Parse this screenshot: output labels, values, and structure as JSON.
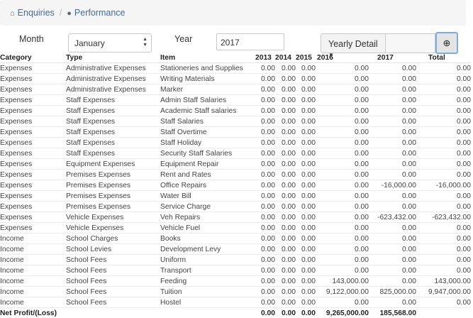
{
  "breadcrumb": {
    "home_label": "Enquiries",
    "current_label": "Performance"
  },
  "filters": {
    "month_label": "Month",
    "month_value": "January",
    "year_label": "Year",
    "year_value": "2017",
    "detail_button": "Yearly Detail",
    "search_placeholder": ""
  },
  "table": {
    "headers": [
      "Category",
      "Type",
      "Item",
      "2013",
      "2014",
      "2015",
      "2016",
      "2017",
      "Total"
    ],
    "rows": [
      [
        "Expenses",
        "Administrative Expenses",
        "Stationeries and Supplies",
        "0.00",
        "0.00",
        "0.00",
        "0.00",
        "0.00",
        "0.00"
      ],
      [
        "Expenses",
        "Administrative Expenses",
        "Writing Materials",
        "0.00",
        "0.00",
        "0.00",
        "0.00",
        "0.00",
        "0.00"
      ],
      [
        "Expenses",
        "Administrative Expenses",
        "Marker",
        "0.00",
        "0.00",
        "0.00",
        "0.00",
        "0.00",
        "0.00"
      ],
      [
        "Expenses",
        "Staff Expenses",
        "Admin Staff Salaries",
        "0.00",
        "0.00",
        "0.00",
        "0.00",
        "0.00",
        "0.00"
      ],
      [
        "Expenses",
        "Staff Expenses",
        "Academic Staff salaries",
        "0.00",
        "0.00",
        "0.00",
        "0.00",
        "0.00",
        "0.00"
      ],
      [
        "Expenses",
        "Staff Expenses",
        "Staff Salaries",
        "0.00",
        "0.00",
        "0.00",
        "0.00",
        "0.00",
        "0.00"
      ],
      [
        "Expenses",
        "Staff Expenses",
        "Staff Overtime",
        "0.00",
        "0.00",
        "0.00",
        "0.00",
        "0.00",
        "0.00"
      ],
      [
        "Expenses",
        "Staff Expenses",
        "Staff Holiday",
        "0.00",
        "0.00",
        "0.00",
        "0.00",
        "0.00",
        "0.00"
      ],
      [
        "Expenses",
        "Staff Expenses",
        "Security Staff Salaries",
        "0.00",
        "0.00",
        "0.00",
        "0.00",
        "0.00",
        "0.00"
      ],
      [
        "Expenses",
        "Equipment Expenses",
        "Equipment Repair",
        "0.00",
        "0.00",
        "0.00",
        "0.00",
        "0.00",
        "0.00"
      ],
      [
        "Expenses",
        "Premises Expenses",
        "Rent and Rates",
        "0.00",
        "0.00",
        "0.00",
        "0.00",
        "0.00",
        "0.00"
      ],
      [
        "Expenses",
        "Premises Expenses",
        "Office Repairs",
        "0.00",
        "0.00",
        "0.00",
        "0.00",
        "-16,000.00",
        "-16,000.00"
      ],
      [
        "Expenses",
        "Premises Expenses",
        "Water Bill",
        "0.00",
        "0.00",
        "0.00",
        "0.00",
        "0.00",
        "0.00"
      ],
      [
        "Expenses",
        "Premises Expenses",
        "Service Charge",
        "0.00",
        "0.00",
        "0.00",
        "0.00",
        "0.00",
        "0.00"
      ],
      [
        "Expenses",
        "Vehicle Expenses",
        "Veh Repairs",
        "0.00",
        "0.00",
        "0.00",
        "0.00",
        "-623,432.00",
        "-623,432.00"
      ],
      [
        "Expenses",
        "Vehicle Expenses",
        "Vehicle Fuel",
        "0.00",
        "0.00",
        "0.00",
        "0.00",
        "0.00",
        "0.00"
      ],
      [
        "Income",
        "School Charges",
        "Books",
        "0.00",
        "0.00",
        "0.00",
        "0.00",
        "0.00",
        "0.00"
      ],
      [
        "Income",
        "School Levies",
        "Development Levy",
        "0.00",
        "0.00",
        "0.00",
        "0.00",
        "0.00",
        "0.00"
      ],
      [
        "Income",
        "School Fees",
        "Uniform",
        "0.00",
        "0.00",
        "0.00",
        "0.00",
        "0.00",
        "0.00"
      ],
      [
        "Income",
        "School Fees",
        "Transport",
        "0.00",
        "0.00",
        "0.00",
        "0.00",
        "0.00",
        "0.00"
      ],
      [
        "Income",
        "School Fees",
        "Feeding",
        "0.00",
        "0.00",
        "0.00",
        "143,000.00",
        "0.00",
        "143,000.00"
      ],
      [
        "Income",
        "School Fees",
        "Tuition",
        "0.00",
        "0.00",
        "0.00",
        "9,122,000.00",
        "825,000.00",
        "9,947,000.00"
      ],
      [
        "Income",
        "School Fees",
        "Hostel",
        "0.00",
        "0.00",
        "0.00",
        "0.00",
        "0.00",
        "0.00"
      ]
    ],
    "total_row": [
      "Net Profit/(Loss)",
      "",
      "",
      "0.00",
      "0.00",
      "0.00",
      "9,265,000.00",
      "185,568.00",
      ""
    ]
  }
}
